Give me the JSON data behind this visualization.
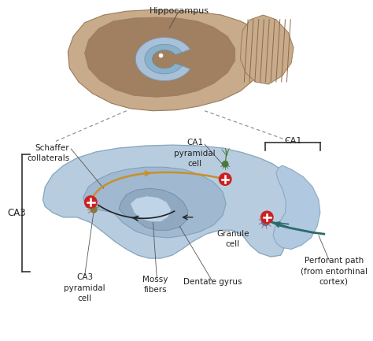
{
  "bg_color": "#ffffff",
  "brain_color": "#c8ab8a",
  "brain_edge": "#9a7a5a",
  "brain_dark": "#a08060",
  "hippo_blue": "#a8c0d8",
  "hippo_dark": "#7a9ab8",
  "cereb_stripe": "#8a6a4a",
  "slice_color": "#b8cce0",
  "slice_edge": "#8aaac0",
  "slice_inner": "#a0b8d0",
  "dentate_color": "#90a8c0",
  "dentate_inner": "#c0d4e8",
  "ca1_ext_color": "#b0c8e0",
  "schaffer_color": "#c8902a",
  "perforant_color": "#2a6a6a",
  "red_color": "#cc2020",
  "neuron_green": "#4a7a3a",
  "neuron_ca3": "#8a7840",
  "neuron_granule": "#7a6888",
  "text_color": "#222222",
  "arrow_color": "#222222",
  "dashed_color": "#888888",
  "bracket_color": "#333333",
  "labels": {
    "hippocampus": "Hippocampus",
    "ca1": "CA1",
    "ca1_cell": "CA1\npyramidal\ncell",
    "schaffer": "Schaffer\ncollaterals",
    "ca3": "CA3",
    "ca3_cell": "CA3\npyramidal\ncell",
    "mossy": "Mossy\nfibers",
    "granule": "Granule\ncell",
    "dentate": "Dentate gyrus",
    "perforant": "Perforant path\n(from entorhinal\ncortex)"
  },
  "font_size": 7.5
}
